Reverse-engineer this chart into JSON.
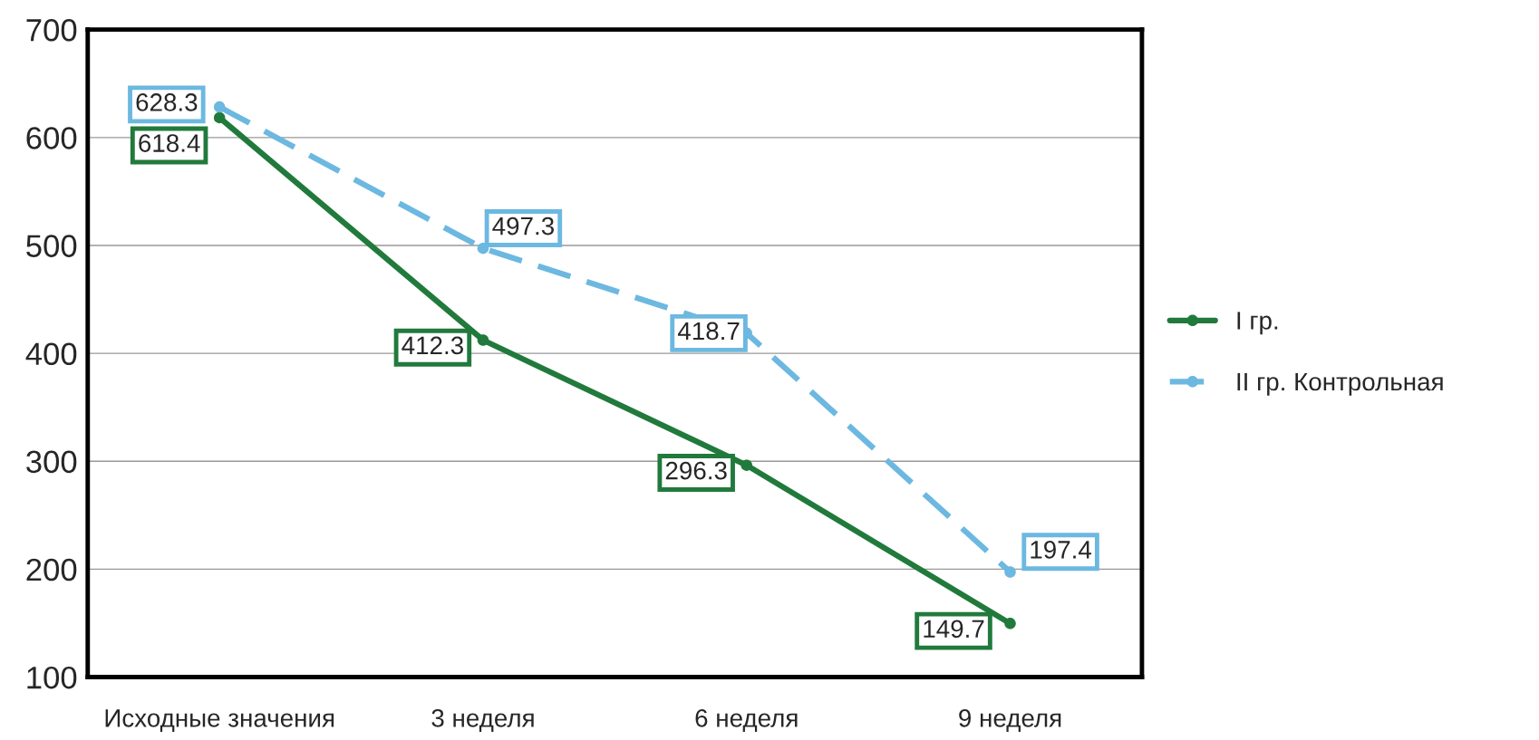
{
  "chart_data": {
    "type": "line",
    "categories": [
      "Исходные значения",
      "3 неделя",
      "6 неделя",
      "9 неделя"
    ],
    "series": [
      {
        "name": "I гр.",
        "color": "#217a3c",
        "values": [
          618.4,
          412.3,
          296.3,
          149.7
        ],
        "line_style": "solid"
      },
      {
        "name": "II гр. Контрольная",
        "color": "#6cb8e0",
        "values": [
          628.3,
          497.3,
          418.7,
          197.4
        ],
        "line_style": "dashed"
      }
    ],
    "ylim": [
      100,
      700
    ],
    "yticks": [
      100,
      200,
      300,
      400,
      500,
      600,
      700
    ],
    "grid": "y",
    "legend": "right",
    "marker": "circle",
    "data_labels": true
  }
}
